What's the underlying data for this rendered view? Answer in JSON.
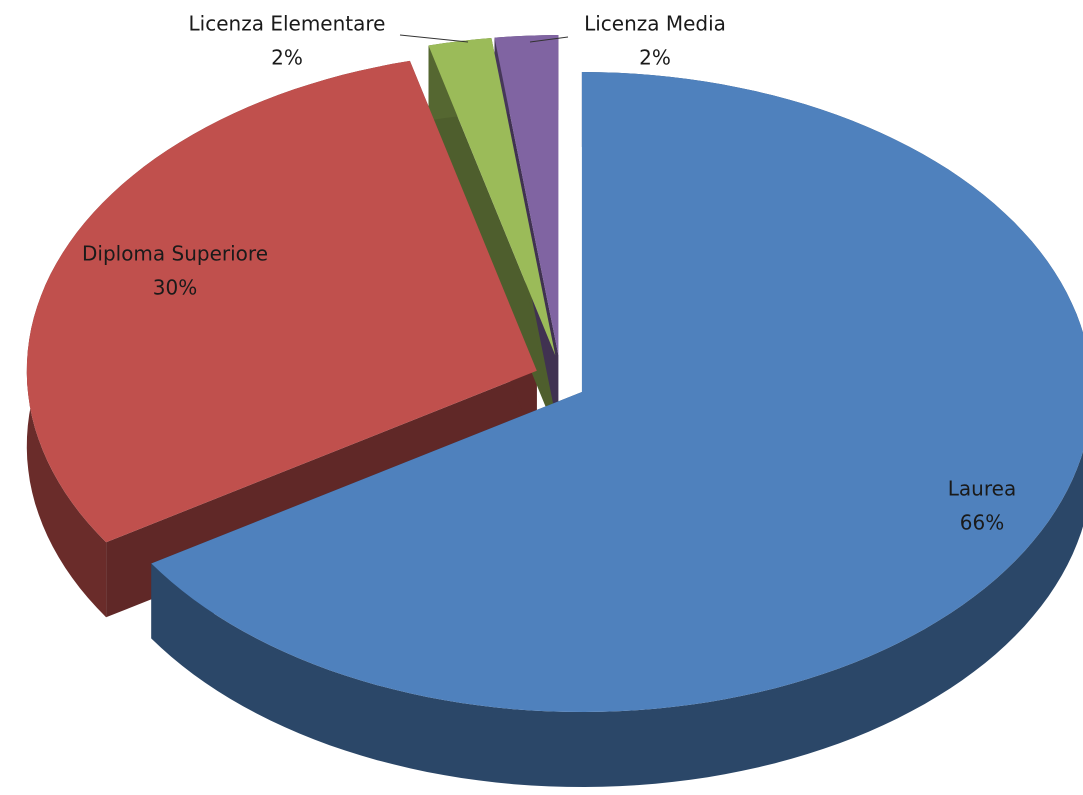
{
  "chart_data": {
    "type": "pie",
    "categories": [
      "Laurea",
      "Diploma Superiore",
      "Licenza Elementare",
      "Licenza Media"
    ],
    "values": [
      66,
      30,
      2,
      2
    ],
    "value_labels": [
      "66%",
      "30%",
      "2%",
      "2%"
    ],
    "colors": [
      "#4f81bd",
      "#c0504d",
      "#9bbb59",
      "#8064a2"
    ],
    "start_angle": 0,
    "direction": "clockwise"
  }
}
